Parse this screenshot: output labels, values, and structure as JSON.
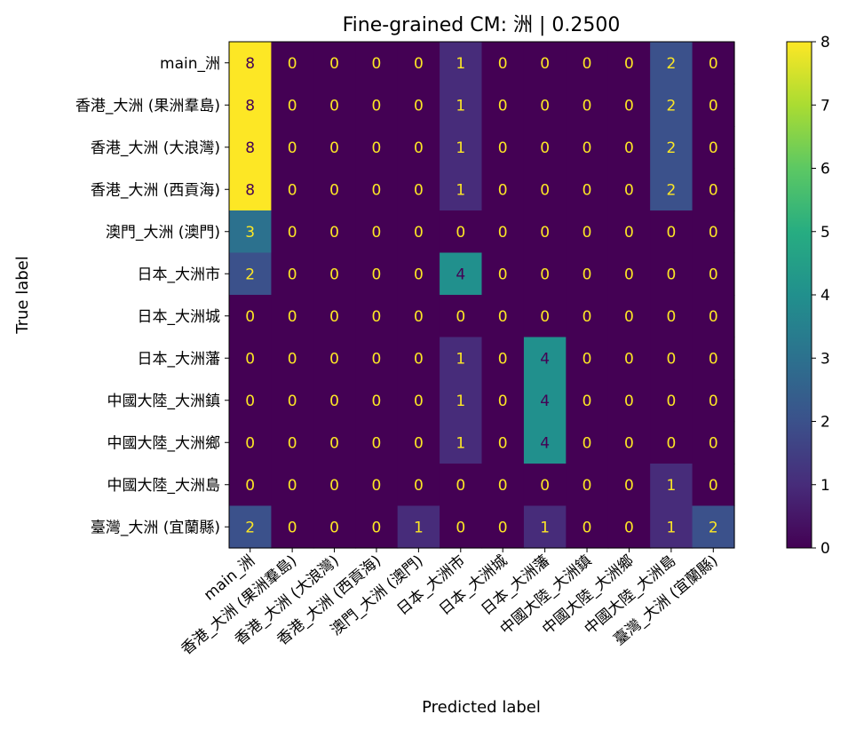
{
  "chart_data": {
    "type": "heatmap",
    "title": "Fine-grained CM: 洲 | 0.2500",
    "xlabel": "Predicted label",
    "ylabel": "True label",
    "labels": [
      "main_洲",
      "香港_大洲 (果洲羣島)",
      "香港_大洲 (大浪灣)",
      "香港_大洲 (西貢海)",
      "澳門_大洲 (澳門)",
      "日本_大洲市",
      "日本_大洲城",
      "日本_大洲藩",
      "中國大陸_大洲鎮",
      "中國大陸_大洲鄉",
      "中國大陸_大洲島",
      "臺灣_大洲 (宜蘭縣)"
    ],
    "matrix": [
      [
        8,
        0,
        0,
        0,
        0,
        1,
        0,
        0,
        0,
        0,
        2,
        0
      ],
      [
        8,
        0,
        0,
        0,
        0,
        1,
        0,
        0,
        0,
        0,
        2,
        0
      ],
      [
        8,
        0,
        0,
        0,
        0,
        1,
        0,
        0,
        0,
        0,
        2,
        0
      ],
      [
        8,
        0,
        0,
        0,
        0,
        1,
        0,
        0,
        0,
        0,
        2,
        0
      ],
      [
        3,
        0,
        0,
        0,
        0,
        0,
        0,
        0,
        0,
        0,
        0,
        0
      ],
      [
        2,
        0,
        0,
        0,
        0,
        4,
        0,
        0,
        0,
        0,
        0,
        0
      ],
      [
        0,
        0,
        0,
        0,
        0,
        0,
        0,
        0,
        0,
        0,
        0,
        0
      ],
      [
        0,
        0,
        0,
        0,
        0,
        1,
        0,
        4,
        0,
        0,
        0,
        0
      ],
      [
        0,
        0,
        0,
        0,
        0,
        1,
        0,
        4,
        0,
        0,
        0,
        0
      ],
      [
        0,
        0,
        0,
        0,
        0,
        1,
        0,
        4,
        0,
        0,
        0,
        0
      ],
      [
        0,
        0,
        0,
        0,
        0,
        0,
        0,
        0,
        0,
        0,
        1,
        0
      ],
      [
        2,
        0,
        0,
        0,
        1,
        0,
        0,
        1,
        0,
        0,
        1,
        2
      ]
    ],
    "colorbar": {
      "min": 0,
      "max": 8,
      "ticks": [
        0,
        1,
        2,
        3,
        4,
        5,
        6,
        7,
        8
      ]
    },
    "colormap": "viridis",
    "text_colors": {
      "low": "#fde725",
      "high": "#440154"
    }
  }
}
